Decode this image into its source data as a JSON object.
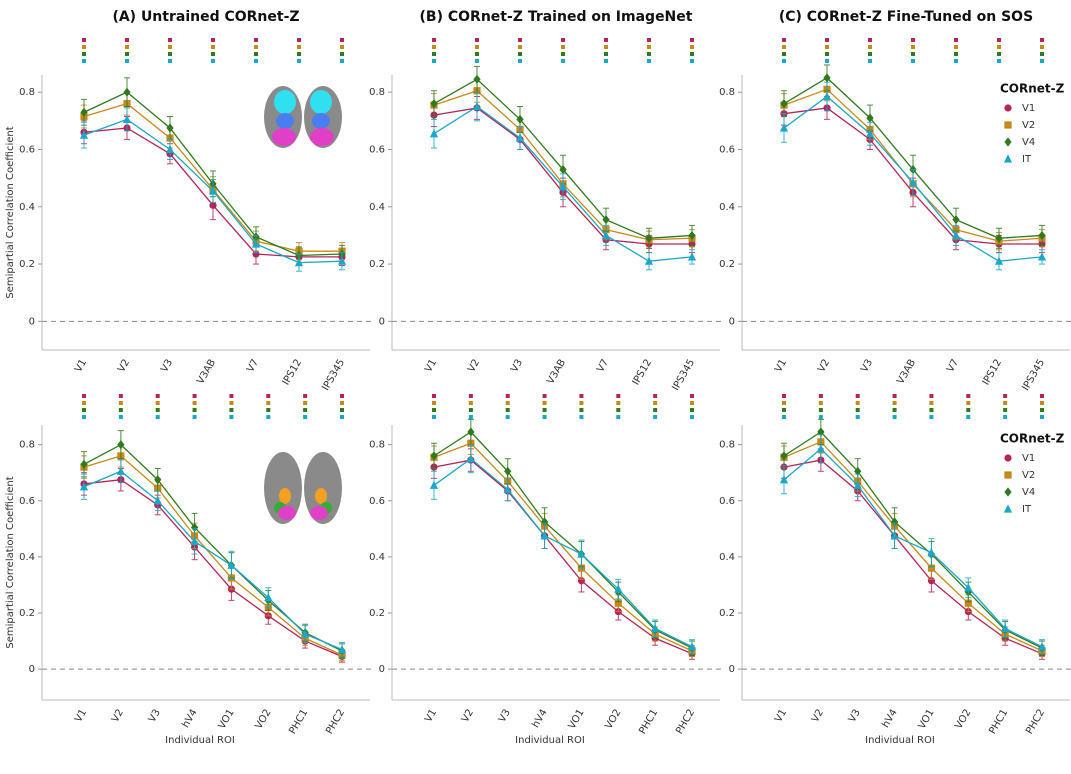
{
  "chart_data": [
    {
      "type": "line",
      "title": "(A) Untrained CORnet-Z",
      "ylabel": "Semipartial Correlation Coefficient",
      "categories": [
        "V1",
        "V2",
        "V3",
        "V3AB",
        "V7",
        "IPS12",
        "IPS345"
      ],
      "ylim": [
        -0.1,
        0.86
      ],
      "yticks": [
        0,
        0.2,
        0.4,
        0.6,
        0.8
      ],
      "zero_line": true,
      "series": [
        {
          "name": "V1",
          "color": "#b5245a",
          "marker": "circle",
          "values": [
            0.66,
            0.675,
            0.585,
            0.405,
            0.235,
            0.225,
            0.225
          ],
          "errors": [
            0.04,
            0.04,
            0.035,
            0.05,
            0.035,
            0.03,
            0.03
          ],
          "significant": [
            true,
            true,
            true,
            true,
            true,
            true,
            true
          ]
        },
        {
          "name": "V2",
          "color": "#c8891a",
          "marker": "square",
          "values": [
            0.715,
            0.76,
            0.64,
            0.46,
            0.28,
            0.245,
            0.245
          ],
          "errors": [
            0.04,
            0.04,
            0.035,
            0.045,
            0.035,
            0.03,
            0.03
          ],
          "significant": [
            true,
            true,
            true,
            true,
            true,
            true,
            true
          ]
        },
        {
          "name": "V4",
          "color": "#2f7a1f",
          "marker": "diamond",
          "values": [
            0.73,
            0.8,
            0.675,
            0.48,
            0.295,
            0.23,
            0.235
          ],
          "errors": [
            0.045,
            0.05,
            0.04,
            0.045,
            0.035,
            0.03,
            0.03
          ],
          "significant": [
            true,
            true,
            true,
            true,
            true,
            true,
            true
          ]
        },
        {
          "name": "IT",
          "color": "#1aa7c9",
          "marker": "triangle",
          "values": [
            0.65,
            0.705,
            0.6,
            0.455,
            0.27,
            0.205,
            0.21
          ],
          "errors": [
            0.045,
            0.04,
            0.035,
            0.04,
            0.03,
            0.03,
            0.03
          ],
          "significant": [
            true,
            true,
            true,
            true,
            true,
            true,
            true
          ]
        }
      ]
    },
    {
      "type": "line",
      "title": "(B) CORnet-Z Trained on ImageNet",
      "categories": [
        "V1",
        "V2",
        "V3",
        "V3AB",
        "V7",
        "IPS12",
        "IPS345"
      ],
      "ylim": [
        -0.1,
        0.86
      ],
      "yticks": [
        0,
        0.2,
        0.4,
        0.6,
        0.8
      ],
      "zero_line": true,
      "series": [
        {
          "name": "V1",
          "color": "#b5245a",
          "marker": "circle",
          "values": [
            0.72,
            0.745,
            0.635,
            0.45,
            0.285,
            0.27,
            0.27
          ],
          "errors": [
            0.04,
            0.04,
            0.035,
            0.05,
            0.035,
            0.03,
            0.03
          ],
          "significant": [
            true,
            true,
            true,
            true,
            true,
            true,
            true
          ]
        },
        {
          "name": "V2",
          "color": "#c8891a",
          "marker": "square",
          "values": [
            0.755,
            0.805,
            0.67,
            0.48,
            0.32,
            0.285,
            0.29
          ],
          "errors": [
            0.04,
            0.04,
            0.035,
            0.045,
            0.035,
            0.03,
            0.03
          ],
          "significant": [
            true,
            true,
            true,
            true,
            true,
            true,
            true
          ]
        },
        {
          "name": "V4",
          "color": "#2f7a1f",
          "marker": "diamond",
          "values": [
            0.76,
            0.845,
            0.705,
            0.53,
            0.355,
            0.29,
            0.3
          ],
          "errors": [
            0.045,
            0.045,
            0.045,
            0.05,
            0.04,
            0.035,
            0.035
          ],
          "significant": [
            true,
            true,
            true,
            true,
            true,
            true,
            true
          ]
        },
        {
          "name": "IT",
          "color": "#1aa7c9",
          "marker": "triangle",
          "values": [
            0.655,
            0.75,
            0.64,
            0.47,
            0.3,
            0.21,
            0.225
          ],
          "errors": [
            0.05,
            0.05,
            0.04,
            0.045,
            0.035,
            0.03,
            0.025
          ],
          "significant": [
            true,
            true,
            true,
            true,
            true,
            true,
            true
          ]
        }
      ]
    },
    {
      "type": "line",
      "title": "(C) CORnet-Z Fine-Tuned on SOS",
      "legend_title": "CORnet-Z",
      "legend": "upper right",
      "categories": [
        "V1",
        "V2",
        "V3",
        "V3AB",
        "V7",
        "IPS12",
        "IPS345"
      ],
      "ylim": [
        -0.1,
        0.86
      ],
      "yticks": [
        0,
        0.2,
        0.4,
        0.6,
        0.8
      ],
      "zero_line": true,
      "series": [
        {
          "name": "V1",
          "color": "#b5245a",
          "marker": "circle",
          "values": [
            0.725,
            0.745,
            0.635,
            0.45,
            0.285,
            0.27,
            0.27
          ],
          "errors": [
            0.04,
            0.04,
            0.035,
            0.05,
            0.035,
            0.03,
            0.03
          ],
          "significant": [
            true,
            true,
            true,
            true,
            true,
            true,
            true
          ]
        },
        {
          "name": "V2",
          "color": "#c8891a",
          "marker": "square",
          "values": [
            0.755,
            0.81,
            0.67,
            0.48,
            0.32,
            0.28,
            0.29
          ],
          "errors": [
            0.04,
            0.04,
            0.035,
            0.045,
            0.035,
            0.03,
            0.03
          ],
          "significant": [
            true,
            true,
            true,
            true,
            true,
            true,
            true
          ]
        },
        {
          "name": "V4",
          "color": "#2f7a1f",
          "marker": "diamond",
          "values": [
            0.76,
            0.85,
            0.71,
            0.53,
            0.355,
            0.29,
            0.3
          ],
          "errors": [
            0.045,
            0.045,
            0.045,
            0.05,
            0.04,
            0.035,
            0.035
          ],
          "significant": [
            true,
            true,
            true,
            true,
            true,
            true,
            true
          ]
        },
        {
          "name": "IT",
          "color": "#1aa7c9",
          "marker": "triangle",
          "values": [
            0.675,
            0.785,
            0.655,
            0.485,
            0.3,
            0.21,
            0.225
          ],
          "errors": [
            0.05,
            0.05,
            0.04,
            0.045,
            0.035,
            0.03,
            0.025
          ],
          "significant": [
            true,
            true,
            true,
            true,
            true,
            true,
            true
          ]
        }
      ]
    },
    {
      "type": "line",
      "ylabel": "Semipartial Correlation Coefficient",
      "xlabel": "Individual ROI",
      "categories": [
        "V1",
        "V2",
        "V3",
        "hV4",
        "VO1",
        "VO2",
        "PHC1",
        "PHC2"
      ],
      "ylim": [
        -0.11,
        0.87
      ],
      "yticks": [
        0,
        0.2,
        0.4,
        0.6,
        0.8
      ],
      "zero_line": true,
      "series": [
        {
          "name": "V1",
          "color": "#b5245a",
          "marker": "circle",
          "values": [
            0.66,
            0.675,
            0.585,
            0.435,
            0.285,
            0.19,
            0.1,
            0.045
          ],
          "errors": [
            0.04,
            0.04,
            0.035,
            0.045,
            0.04,
            0.03,
            0.025,
            0.02
          ],
          "significant": [
            true,
            true,
            true,
            true,
            true,
            true,
            true,
            true
          ]
        },
        {
          "name": "V2",
          "color": "#c8891a",
          "marker": "square",
          "values": [
            0.72,
            0.76,
            0.645,
            0.475,
            0.325,
            0.22,
            0.11,
            0.05
          ],
          "errors": [
            0.04,
            0.04,
            0.035,
            0.045,
            0.04,
            0.03,
            0.025,
            0.02
          ],
          "significant": [
            true,
            true,
            true,
            true,
            true,
            true,
            true,
            true
          ]
        },
        {
          "name": "V4",
          "color": "#2f7a1f",
          "marker": "diamond",
          "values": [
            0.73,
            0.8,
            0.675,
            0.505,
            0.37,
            0.245,
            0.13,
            0.065
          ],
          "errors": [
            0.045,
            0.05,
            0.04,
            0.05,
            0.045,
            0.035,
            0.03,
            0.025
          ],
          "significant": [
            true,
            true,
            true,
            true,
            true,
            true,
            true,
            true
          ]
        },
        {
          "name": "IT",
          "color": "#1aa7c9",
          "marker": "triangle",
          "values": [
            0.65,
            0.705,
            0.6,
            0.455,
            0.37,
            0.255,
            0.125,
            0.07
          ],
          "errors": [
            0.045,
            0.04,
            0.035,
            0.045,
            0.05,
            0.035,
            0.03,
            0.025
          ],
          "significant": [
            true,
            true,
            true,
            true,
            true,
            true,
            true,
            true
          ]
        }
      ]
    },
    {
      "type": "line",
      "xlabel": "Individual ROI",
      "categories": [
        "V1",
        "V2",
        "V3",
        "hV4",
        "VO1",
        "VO2",
        "PHC1",
        "PHC2"
      ],
      "ylim": [
        -0.11,
        0.87
      ],
      "yticks": [
        0,
        0.2,
        0.4,
        0.6,
        0.8
      ],
      "zero_line": true,
      "series": [
        {
          "name": "V1",
          "color": "#b5245a",
          "marker": "circle",
          "values": [
            0.72,
            0.745,
            0.635,
            0.475,
            0.315,
            0.205,
            0.11,
            0.055
          ],
          "errors": [
            0.04,
            0.04,
            0.035,
            0.045,
            0.04,
            0.03,
            0.025,
            0.02
          ],
          "significant": [
            true,
            true,
            true,
            true,
            true,
            true,
            true,
            true
          ]
        },
        {
          "name": "V2",
          "color": "#c8891a",
          "marker": "square",
          "values": [
            0.755,
            0.805,
            0.67,
            0.51,
            0.36,
            0.235,
            0.125,
            0.065
          ],
          "errors": [
            0.04,
            0.04,
            0.035,
            0.045,
            0.04,
            0.03,
            0.025,
            0.02
          ],
          "significant": [
            true,
            true,
            true,
            true,
            true,
            true,
            true,
            true
          ]
        },
        {
          "name": "V4",
          "color": "#2f7a1f",
          "marker": "diamond",
          "values": [
            0.76,
            0.845,
            0.705,
            0.525,
            0.41,
            0.275,
            0.14,
            0.075
          ],
          "errors": [
            0.045,
            0.045,
            0.045,
            0.05,
            0.045,
            0.035,
            0.03,
            0.025
          ],
          "significant": [
            true,
            true,
            true,
            true,
            true,
            true,
            true,
            true
          ]
        },
        {
          "name": "IT",
          "color": "#1aa7c9",
          "marker": "triangle",
          "values": [
            0.655,
            0.75,
            0.64,
            0.475,
            0.41,
            0.285,
            0.145,
            0.08
          ],
          "errors": [
            0.05,
            0.05,
            0.04,
            0.045,
            0.05,
            0.035,
            0.03,
            0.025
          ],
          "significant": [
            true,
            true,
            true,
            true,
            true,
            true,
            true,
            true
          ]
        }
      ]
    },
    {
      "type": "line",
      "xlabel": "Individual ROI",
      "legend_title": "CORnet-Z",
      "legend": "upper right",
      "categories": [
        "V1",
        "V2",
        "V3",
        "hV4",
        "VO1",
        "VO2",
        "PHC1",
        "PHC2"
      ],
      "ylim": [
        -0.11,
        0.87
      ],
      "yticks": [
        0,
        0.2,
        0.4,
        0.6,
        0.8
      ],
      "zero_line": true,
      "series": [
        {
          "name": "V1",
          "color": "#b5245a",
          "marker": "circle",
          "values": [
            0.72,
            0.745,
            0.635,
            0.475,
            0.315,
            0.205,
            0.11,
            0.055
          ],
          "errors": [
            0.04,
            0.04,
            0.035,
            0.045,
            0.04,
            0.03,
            0.025,
            0.02
          ],
          "significant": [
            true,
            true,
            true,
            true,
            true,
            true,
            true,
            true
          ]
        },
        {
          "name": "V2",
          "color": "#c8891a",
          "marker": "square",
          "values": [
            0.755,
            0.81,
            0.67,
            0.51,
            0.36,
            0.235,
            0.125,
            0.065
          ],
          "errors": [
            0.04,
            0.04,
            0.035,
            0.045,
            0.04,
            0.03,
            0.025,
            0.02
          ],
          "significant": [
            true,
            true,
            true,
            true,
            true,
            true,
            true,
            true
          ]
        },
        {
          "name": "V4",
          "color": "#2f7a1f",
          "marker": "diamond",
          "values": [
            0.76,
            0.845,
            0.705,
            0.525,
            0.41,
            0.275,
            0.14,
            0.075
          ],
          "errors": [
            0.045,
            0.045,
            0.045,
            0.05,
            0.045,
            0.035,
            0.03,
            0.025
          ],
          "significant": [
            true,
            true,
            true,
            true,
            true,
            true,
            true,
            true
          ]
        },
        {
          "name": "IT",
          "color": "#1aa7c9",
          "marker": "triangle",
          "values": [
            0.675,
            0.785,
            0.655,
            0.475,
            0.415,
            0.29,
            0.145,
            0.08
          ],
          "errors": [
            0.05,
            0.05,
            0.04,
            0.045,
            0.05,
            0.035,
            0.03,
            0.025
          ],
          "significant": [
            true,
            true,
            true,
            true,
            true,
            true,
            true,
            true
          ]
        }
      ]
    }
  ]
}
